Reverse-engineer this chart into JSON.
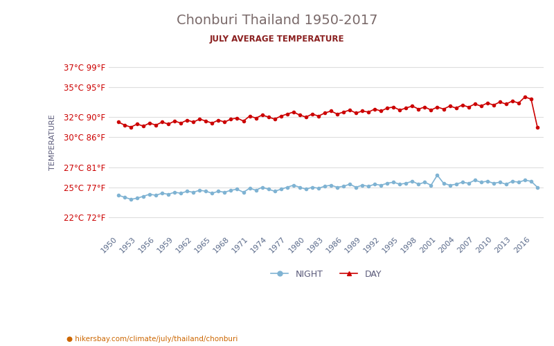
{
  "title": "Chonburi Thailand 1950-2017",
  "subtitle": "JULY AVERAGE TEMPERATURE",
  "xlabel": "",
  "ylabel": "TEMPERATURE",
  "yticks_c": [
    22,
    25,
    27,
    30,
    32,
    35,
    37
  ],
  "yticks_f": [
    72,
    77,
    81,
    86,
    90,
    95,
    99
  ],
  "years": [
    1950,
    1951,
    1952,
    1953,
    1954,
    1955,
    1956,
    1957,
    1958,
    1959,
    1960,
    1961,
    1962,
    1963,
    1964,
    1965,
    1966,
    1967,
    1968,
    1969,
    1970,
    1971,
    1972,
    1973,
    1974,
    1975,
    1976,
    1977,
    1978,
    1979,
    1980,
    1981,
    1982,
    1983,
    1984,
    1985,
    1986,
    1987,
    1988,
    1989,
    1990,
    1991,
    1992,
    1993,
    1994,
    1995,
    1996,
    1997,
    1998,
    1999,
    2000,
    2001,
    2002,
    2003,
    2004,
    2005,
    2006,
    2007,
    2008,
    2009,
    2010,
    2011,
    2012,
    2013,
    2014,
    2015,
    2016,
    2017
  ],
  "day_temps": [
    31.5,
    31.2,
    31.0,
    31.3,
    31.1,
    31.4,
    31.2,
    31.5,
    31.3,
    31.6,
    31.4,
    31.7,
    31.5,
    31.8,
    31.6,
    31.4,
    31.7,
    31.5,
    31.8,
    31.9,
    31.6,
    32.1,
    31.9,
    32.2,
    32.0,
    31.8,
    32.1,
    32.3,
    32.5,
    32.2,
    32.0,
    32.3,
    32.1,
    32.4,
    32.6,
    32.3,
    32.5,
    32.7,
    32.4,
    32.6,
    32.5,
    32.8,
    32.6,
    32.9,
    33.0,
    32.7,
    32.9,
    33.1,
    32.8,
    33.0,
    32.7,
    33.0,
    32.8,
    33.1,
    32.9,
    33.2,
    33.0,
    33.3,
    33.1,
    33.4,
    33.2,
    33.5,
    33.3,
    33.6,
    33.4,
    34.0,
    33.8,
    31.0
  ],
  "night_temps": [
    24.2,
    24.0,
    23.8,
    23.9,
    24.1,
    24.3,
    24.2,
    24.4,
    24.3,
    24.5,
    24.4,
    24.6,
    24.5,
    24.7,
    24.6,
    24.4,
    24.6,
    24.5,
    24.7,
    24.8,
    24.5,
    24.9,
    24.7,
    25.0,
    24.8,
    24.6,
    24.8,
    25.0,
    25.2,
    25.0,
    24.8,
    25.0,
    24.9,
    25.1,
    25.2,
    25.0,
    25.1,
    25.3,
    25.0,
    25.2,
    25.1,
    25.3,
    25.2,
    25.4,
    25.5,
    25.3,
    25.4,
    25.6,
    25.3,
    25.5,
    25.2,
    26.2,
    25.4,
    25.2,
    25.3,
    25.5,
    25.4,
    25.7,
    25.5,
    25.6,
    25.4,
    25.5,
    25.3,
    25.6,
    25.5,
    25.7,
    25.6,
    25.0
  ],
  "day_color": "#cc0000",
  "night_color": "#7fb3d3",
  "marker_size": 3,
  "line_width": 1.2,
  "title_color": "#7a6a6a",
  "subtitle_color": "#8b2020",
  "ylabel_color": "#5a5a7a",
  "tick_label_color": "#cc0000",
  "grid_color": "#dddddd",
  "background_color": "#ffffff",
  "footer_text": "hikersbay.com/climate/july/thailand/chonburi",
  "legend_night": "NIGHT",
  "legend_day": "DAY",
  "xtick_years": [
    1950,
    1953,
    1956,
    1959,
    1962,
    1965,
    1968,
    1971,
    1974,
    1977,
    1980,
    1983,
    1986,
    1989,
    1992,
    1995,
    1998,
    2001,
    2004,
    2007,
    2010,
    2013,
    2016
  ]
}
